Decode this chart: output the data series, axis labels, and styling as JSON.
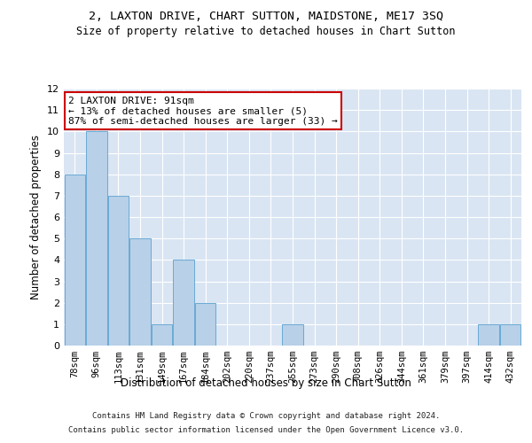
{
  "title": "2, LAXTON DRIVE, CHART SUTTON, MAIDSTONE, ME17 3SQ",
  "subtitle": "Size of property relative to detached houses in Chart Sutton",
  "xlabel": "Distribution of detached houses by size in Chart Sutton",
  "ylabel": "Number of detached properties",
  "categories": [
    "78sqm",
    "96sqm",
    "113sqm",
    "131sqm",
    "149sqm",
    "167sqm",
    "184sqm",
    "202sqm",
    "220sqm",
    "237sqm",
    "255sqm",
    "273sqm",
    "290sqm",
    "308sqm",
    "326sqm",
    "344sqm",
    "361sqm",
    "379sqm",
    "397sqm",
    "414sqm",
    "432sqm"
  ],
  "values": [
    8,
    10,
    7,
    5,
    1,
    4,
    2,
    0,
    0,
    0,
    1,
    0,
    0,
    0,
    0,
    0,
    0,
    0,
    0,
    1,
    1
  ],
  "bar_color_normal": "#b8d0e8",
  "bar_color_edge": "#6aaad4",
  "bg_color": "#d9e5f3",
  "annotation_box_text": "2 LAXTON DRIVE: 91sqm\n← 13% of detached houses are smaller (5)\n87% of semi-detached houses are larger (33) →",
  "annotation_box_color": "white",
  "annotation_box_edge_color": "#cc0000",
  "ylim": [
    0,
    12
  ],
  "yticks": [
    0,
    1,
    2,
    3,
    4,
    5,
    6,
    7,
    8,
    9,
    10,
    11,
    12
  ],
  "footer_line1": "Contains HM Land Registry data © Crown copyright and database right 2024.",
  "footer_line2": "Contains public sector information licensed under the Open Government Licence v3.0."
}
